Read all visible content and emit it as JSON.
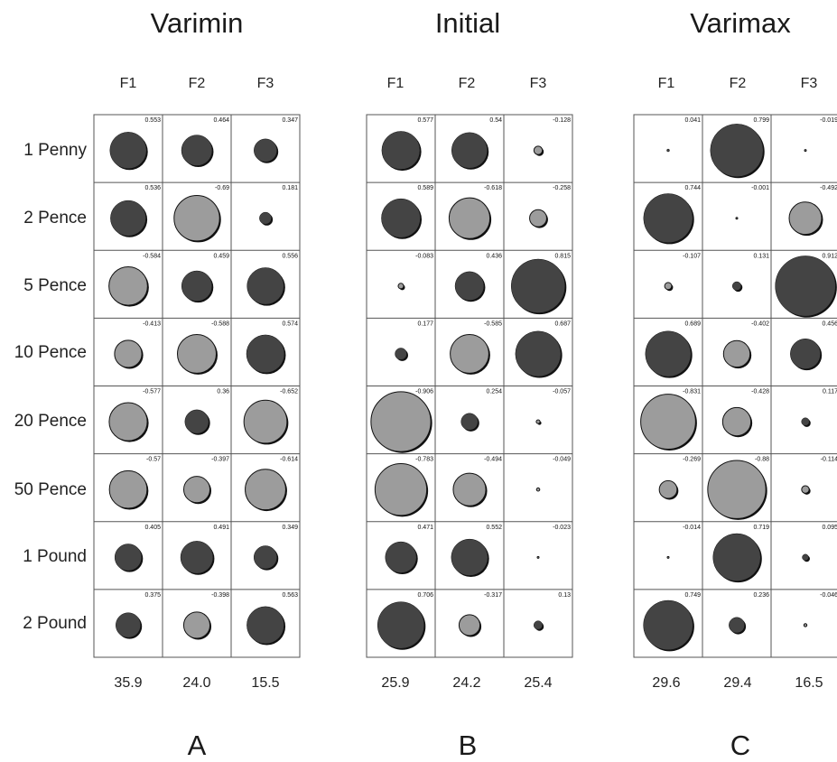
{
  "chart_data": [
    {
      "type": "bubble-matrix",
      "title": "Varimin",
      "panel": "A",
      "columns": [
        "F1",
        "F2",
        "F3"
      ],
      "rows": [
        "1 Penny",
        "2 Pence",
        "5 Pence",
        "10 Pence",
        "20 Pence",
        "50 Pence",
        "1 Pound",
        "2 Pound"
      ],
      "variance_explained": [
        "35.9",
        "24.0",
        "15.5"
      ],
      "loadings": [
        [
          0.553,
          0.464,
          0.347
        ],
        [
          0.536,
          -0.69,
          0.181
        ],
        [
          -0.584,
          0.459,
          0.556
        ],
        [
          -0.413,
          -0.588,
          0.574
        ],
        [
          -0.577,
          0.36,
          -0.652
        ],
        [
          -0.57,
          -0.397,
          -0.614
        ],
        [
          0.405,
          0.491,
          0.349
        ],
        [
          0.375,
          -0.398,
          0.563
        ]
      ],
      "loading_labels": [
        [
          "0.553",
          "0.464",
          "0.347"
        ],
        [
          "0.536",
          "-0.69",
          "0.181"
        ],
        [
          "-0.584",
          "0.459",
          "0.556"
        ],
        [
          "-0.413",
          "-0.588",
          "0.574"
        ],
        [
          "-0.577",
          "0.36",
          "-0.652"
        ],
        [
          "-0.57",
          "-0.397",
          "-0.614"
        ],
        [
          "0.405",
          "0.491",
          "0.349"
        ],
        [
          "0.375",
          "-0.398",
          "0.563"
        ]
      ]
    },
    {
      "type": "bubble-matrix",
      "title": "Initial",
      "panel": "B",
      "columns": [
        "F1",
        "F2",
        "F3"
      ],
      "rows": [
        "1 Penny",
        "2 Pence",
        "5 Pence",
        "10 Pence",
        "20 Pence",
        "50 Pence",
        "1 Pound",
        "2 Pound"
      ],
      "variance_explained": [
        "25.9",
        "24.2",
        "25.4"
      ],
      "loadings": [
        [
          0.577,
          0.54,
          -0.128
        ],
        [
          0.589,
          -0.618,
          -0.258
        ],
        [
          -0.083,
          0.436,
          0.815
        ],
        [
          0.177,
          -0.585,
          0.687
        ],
        [
          -0.906,
          0.254,
          -0.057
        ],
        [
          -0.783,
          -0.494,
          -0.049
        ],
        [
          0.471,
          0.552,
          -0.023
        ],
        [
          0.706,
          -0.317,
          0.13
        ]
      ],
      "loading_labels": [
        [
          "0.577",
          "0.54",
          "-0.128"
        ],
        [
          "0.589",
          "-0.618",
          "-0.258"
        ],
        [
          "-0.083",
          "0.436",
          "0.815"
        ],
        [
          "0.177",
          "-0.585",
          "0.687"
        ],
        [
          "-0.906",
          "0.254",
          "-0.057"
        ],
        [
          "-0.783",
          "-0.494",
          "-0.049"
        ],
        [
          "0.471",
          "0.552",
          "-0.023"
        ],
        [
          "0.706",
          "-0.317",
          "0.13"
        ]
      ]
    },
    {
      "type": "bubble-matrix",
      "title": "Varimax",
      "panel": "C",
      "columns": [
        "F1",
        "F2",
        "F3"
      ],
      "rows": [
        "1 Penny",
        "2 Pence",
        "5 Pence",
        "10 Pence",
        "20 Pence",
        "50 Pence",
        "1 Pound",
        "2 Pound"
      ],
      "variance_explained": [
        "29.6",
        "29.4",
        "16.5"
      ],
      "loadings": [
        [
          0.041,
          0.799,
          -0.019
        ],
        [
          0.744,
          -0.001,
          -0.492
        ],
        [
          -0.107,
          0.131,
          0.912
        ],
        [
          0.689,
          -0.402,
          0.456
        ],
        [
          -0.831,
          -0.428,
          0.117
        ],
        [
          -0.269,
          -0.88,
          -0.114
        ],
        [
          -0.014,
          0.719,
          0.095
        ],
        [
          0.749,
          0.236,
          -0.046
        ]
      ],
      "loading_labels": [
        [
          "0.041",
          "0.799",
          "-0.019"
        ],
        [
          "0.744",
          "-0.001",
          "-0.492"
        ],
        [
          "-0.107",
          "0.131",
          "0.912"
        ],
        [
          "0.689",
          "-0.402",
          "0.456"
        ],
        [
          "-0.831",
          "-0.428",
          "0.117"
        ],
        [
          "-0.269",
          "-0.88",
          "-0.114"
        ],
        [
          "-0.014",
          "0.719",
          "0.095"
        ],
        [
          "0.749",
          "0.236",
          "-0.046"
        ]
      ]
    }
  ],
  "colors": {
    "positive": "#444444",
    "negative": "#9c9c9c",
    "outline": "#111111",
    "grid": "#555555"
  }
}
